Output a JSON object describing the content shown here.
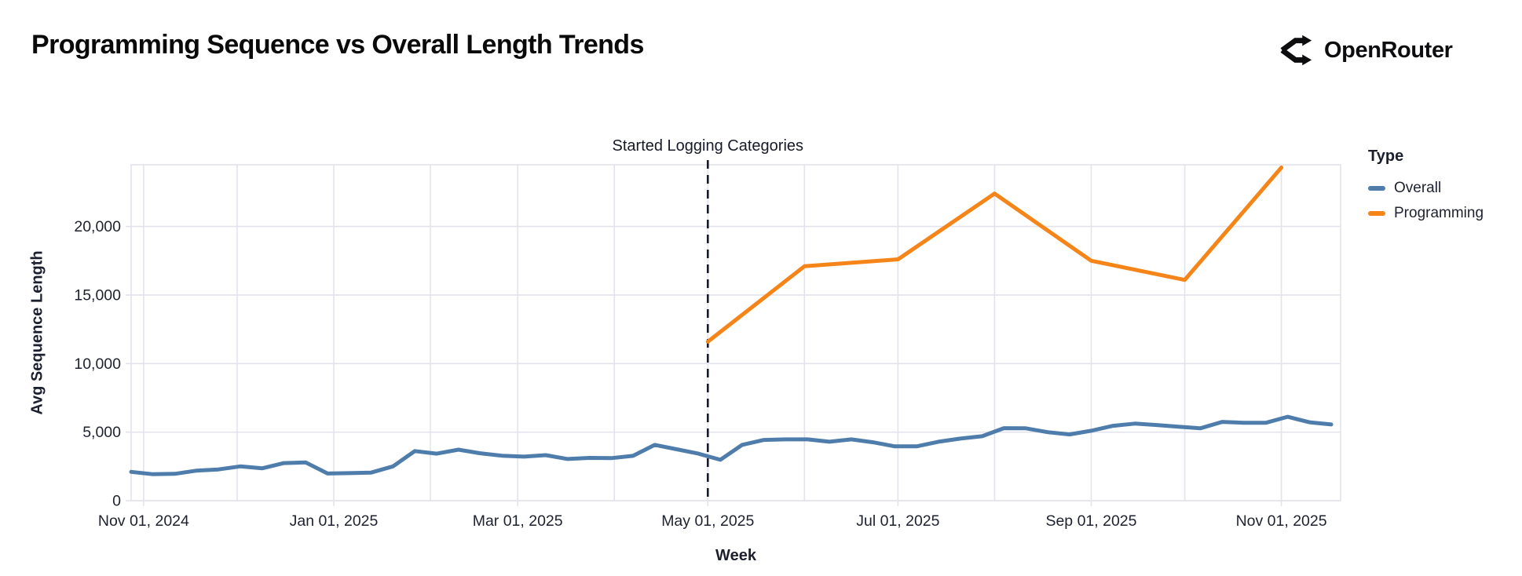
{
  "header": {
    "title": "Programming Sequence vs Overall Length Trends",
    "brand": "OpenRouter"
  },
  "chart_data": {
    "type": "line",
    "title": "Programming Sequence vs Overall Length Trends",
    "xlabel": "Week",
    "ylabel": "Avg Sequence Length",
    "x_domain": [
      "2024-10-28",
      "2025-11-20"
    ],
    "ylim": [
      0,
      24500
    ],
    "grid": true,
    "y_ticks": [
      {
        "value": 0,
        "label": "0"
      },
      {
        "value": 5000,
        "label": "5,000"
      },
      {
        "value": 10000,
        "label": "10,000"
      },
      {
        "value": 15000,
        "label": "15,000"
      },
      {
        "value": 20000,
        "label": "20,000"
      }
    ],
    "x_ticks": [
      {
        "date": "2024-11-01",
        "label": "Nov 01, 2024"
      },
      {
        "date": "2024-12-01",
        "label": ""
      },
      {
        "date": "2025-01-01",
        "label": "Jan 01, 2025"
      },
      {
        "date": "2025-02-01",
        "label": ""
      },
      {
        "date": "2025-03-01",
        "label": "Mar 01, 2025"
      },
      {
        "date": "2025-04-01",
        "label": ""
      },
      {
        "date": "2025-05-01",
        "label": "May 01, 2025"
      },
      {
        "date": "2025-06-01",
        "label": ""
      },
      {
        "date": "2025-07-01",
        "label": "Jul 01, 2025"
      },
      {
        "date": "2025-08-01",
        "label": ""
      },
      {
        "date": "2025-09-01",
        "label": "Sep 01, 2025"
      },
      {
        "date": "2025-10-01",
        "label": ""
      },
      {
        "date": "2025-11-01",
        "label": "Nov 01, 2025"
      }
    ],
    "annotation": {
      "label": "Started Logging Categories",
      "date": "2025-05-01"
    },
    "legend": {
      "title": "Type",
      "position": "right",
      "entries": [
        {
          "name": "Overall",
          "color": "#4f7dab"
        },
        {
          "name": "Programming",
          "color": "#f58518"
        }
      ]
    },
    "series": [
      {
        "name": "Overall",
        "color": "#4f7dab",
        "x": [
          "2024-10-28",
          "2024-11-04",
          "2024-11-11",
          "2024-11-18",
          "2024-11-25",
          "2024-12-02",
          "2024-12-09",
          "2024-12-16",
          "2024-12-23",
          "2024-12-30",
          "2025-01-06",
          "2025-01-13",
          "2025-01-20",
          "2025-01-27",
          "2025-02-03",
          "2025-02-10",
          "2025-02-17",
          "2025-02-24",
          "2025-03-03",
          "2025-03-10",
          "2025-03-17",
          "2025-03-24",
          "2025-03-31",
          "2025-04-07",
          "2025-04-14",
          "2025-04-21",
          "2025-04-28",
          "2025-05-05",
          "2025-05-12",
          "2025-05-19",
          "2025-05-26",
          "2025-06-02",
          "2025-06-09",
          "2025-06-16",
          "2025-06-23",
          "2025-06-30",
          "2025-07-07",
          "2025-07-14",
          "2025-07-21",
          "2025-07-28",
          "2025-08-04",
          "2025-08-11",
          "2025-08-18",
          "2025-08-25",
          "2025-09-01",
          "2025-09-08",
          "2025-09-15",
          "2025-09-22",
          "2025-09-29",
          "2025-10-06",
          "2025-10-13",
          "2025-10-20",
          "2025-10-27",
          "2025-11-03",
          "2025-11-10",
          "2025-11-17"
        ],
        "values": [
          2100,
          1930,
          1960,
          2190,
          2280,
          2500,
          2360,
          2740,
          2790,
          1980,
          2010,
          2050,
          2500,
          3620,
          3430,
          3720,
          3460,
          3280,
          3210,
          3320,
          3040,
          3120,
          3100,
          3270,
          4070,
          3750,
          3430,
          2980,
          4070,
          4430,
          4470,
          4470,
          4300,
          4470,
          4260,
          3960,
          3960,
          4300,
          4530,
          4700,
          5290,
          5280,
          5000,
          4830,
          5100,
          5460,
          5620,
          5520,
          5390,
          5280,
          5750,
          5680,
          5680,
          6120,
          5720,
          5560
        ]
      },
      {
        "name": "Programming",
        "color": "#f58518",
        "x": [
          "2025-05-01",
          "2025-06-01",
          "2025-07-01",
          "2025-08-01",
          "2025-09-01",
          "2025-10-01",
          "2025-11-01"
        ],
        "values": [
          11600,
          17100,
          17600,
          22400,
          17500,
          16100,
          24300
        ]
      }
    ]
  }
}
